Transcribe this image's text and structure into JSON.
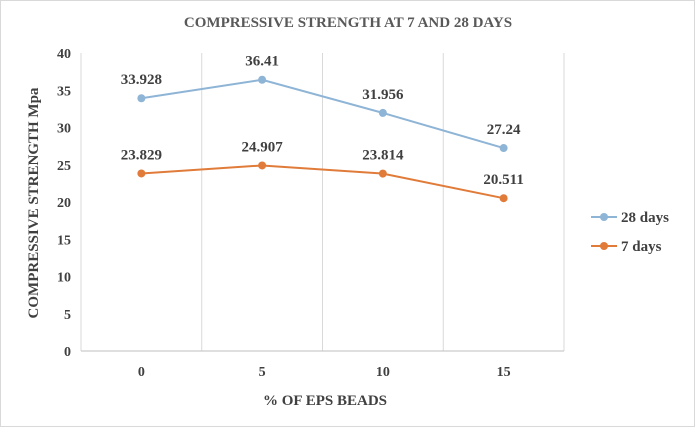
{
  "chart_data": {
    "type": "line",
    "title": "COMPRESSIVE STRENGTH AT 7 AND 28 DAYS",
    "xlabel": "% OF EPS BEADS",
    "ylabel": "COMPRESSIVE  STRENGTH  Mpa",
    "categories": [
      "0",
      "5",
      "10",
      "15"
    ],
    "ylim": [
      0,
      40
    ],
    "yticks": [
      0,
      5,
      10,
      15,
      20,
      25,
      30,
      35,
      40
    ],
    "grid": "vertical category dividers",
    "legend_position": "right",
    "series": [
      {
        "name": "28 days",
        "values": [
          33.928,
          36.41,
          31.956,
          27.24
        ],
        "labels": [
          "33.928",
          "36.41",
          "31.956",
          "27.24"
        ],
        "color": "#8eb4d6"
      },
      {
        "name": "7 days",
        "values": [
          23.829,
          24.907,
          23.814,
          20.511
        ],
        "labels": [
          "23.829",
          "24.907",
          "23.814",
          "20.511"
        ],
        "color": "#e07b39"
      }
    ]
  }
}
